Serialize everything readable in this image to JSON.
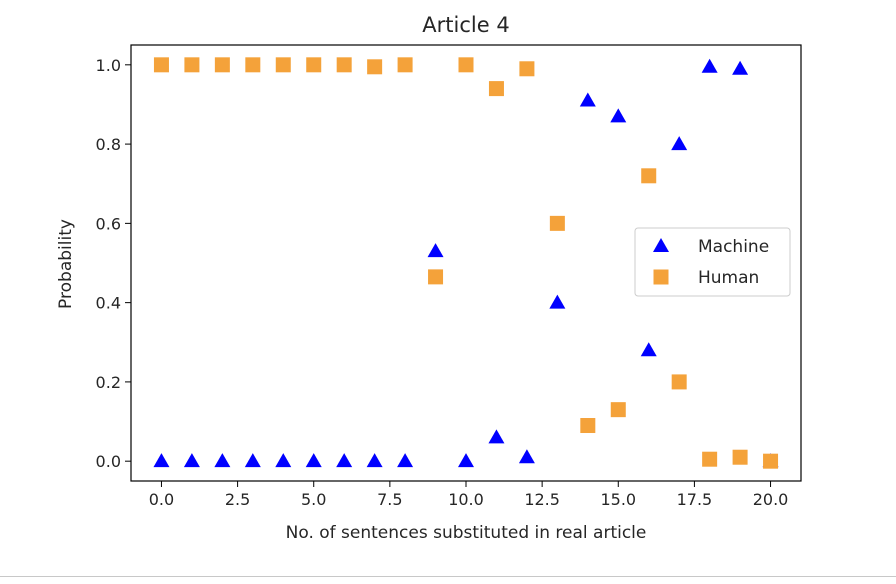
{
  "chart_data": {
    "type": "scatter",
    "title": "Article 4",
    "xlabel": "No. of sentences substituted in real article",
    "ylabel": "Probability",
    "xlim": [
      -1,
      21
    ],
    "ylim": [
      -0.05,
      1.05
    ],
    "xticks": [
      0,
      2.5,
      5,
      7.5,
      10,
      12.5,
      15,
      17.5,
      20
    ],
    "xtick_labels": [
      "0.0",
      "2.5",
      "5.0",
      "7.5",
      "10.0",
      "12.5",
      "15.0",
      "17.5",
      "20.0"
    ],
    "yticks": [
      0,
      0.2,
      0.4,
      0.6,
      0.8,
      1.0
    ],
    "ytick_labels": [
      "0.0",
      "0.2",
      "0.4",
      "0.6",
      "0.8",
      "1.0"
    ],
    "grid": false,
    "legend": "center-right",
    "series": [
      {
        "name": "Machine",
        "marker": "triangle",
        "color": "#0000ff",
        "points": [
          [
            0,
            0
          ],
          [
            1,
            0
          ],
          [
            2,
            0
          ],
          [
            3,
            0
          ],
          [
            4,
            0
          ],
          [
            5,
            0
          ],
          [
            6,
            0
          ],
          [
            7,
            0
          ],
          [
            8,
            0
          ],
          [
            9,
            0.53
          ],
          [
            10,
            0
          ],
          [
            11,
            0.06
          ],
          [
            12,
            0.01
          ],
          [
            13,
            0.4
          ],
          [
            14,
            0.91
          ],
          [
            15,
            0.87
          ],
          [
            16,
            0.28
          ],
          [
            17,
            0.8
          ],
          [
            18,
            0.995
          ],
          [
            19,
            0.99
          ],
          [
            20,
            0
          ]
        ]
      },
      {
        "name": "Human",
        "marker": "square",
        "color": "#f4a23a",
        "points": [
          [
            0,
            1.0
          ],
          [
            1,
            1.0
          ],
          [
            2,
            1.0
          ],
          [
            3,
            1.0
          ],
          [
            4,
            1.0
          ],
          [
            5,
            1.0
          ],
          [
            6,
            1.0
          ],
          [
            7,
            0.995
          ],
          [
            8,
            1.0
          ],
          [
            9,
            0.465
          ],
          [
            10,
            1.0
          ],
          [
            11,
            0.94
          ],
          [
            12,
            0.99
          ],
          [
            13,
            0.6
          ],
          [
            14,
            0.09
          ],
          [
            15,
            0.13
          ],
          [
            16,
            0.72
          ],
          [
            17,
            0.2
          ],
          [
            18,
            0.005
          ],
          [
            19,
            0.01
          ],
          [
            20,
            0.0
          ]
        ]
      }
    ]
  }
}
